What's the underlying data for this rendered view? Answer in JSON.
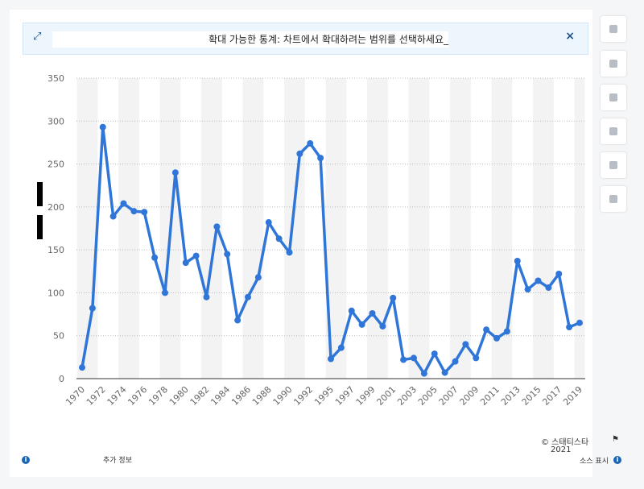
{
  "banner": {
    "text": "확대 가능한 통계: 차트에서 확대하려는 범위를 선택하세요_"
  },
  "chart_data": {
    "type": "line",
    "color": "#2f76d8",
    "categories": [
      "1970",
      "1971",
      "1972",
      "1973",
      "1974",
      "1975",
      "1976",
      "1977",
      "1978",
      "1979",
      "1980",
      "1981",
      "1982",
      "1983",
      "1984",
      "1985",
      "1986",
      "1987",
      "1988",
      "1989",
      "1990",
      "1991",
      "1992",
      "1993",
      "1995",
      "1996",
      "1997",
      "1998",
      "1999",
      "2000",
      "2001",
      "2002",
      "2003",
      "2004",
      "2005",
      "2006",
      "2007",
      "2008",
      "2009",
      "2010",
      "2011",
      "2012",
      "2013",
      "2014",
      "2015",
      "2016",
      "2017",
      "2018",
      "2019"
    ],
    "values": [
      13,
      82,
      293,
      189,
      204,
      195,
      194,
      141,
      100,
      240,
      135,
      143,
      95,
      177,
      145,
      68,
      95,
      118,
      182,
      163,
      147,
      262,
      274,
      257,
      23,
      36,
      79,
      63,
      76,
      61,
      94,
      22,
      24,
      6,
      29,
      7,
      20,
      40,
      24,
      57,
      47,
      55,
      137,
      104,
      114,
      106,
      122,
      60,
      65
    ],
    "ylim": [
      0,
      350
    ],
    "yticks": [
      0,
      50,
      100,
      150,
      200,
      250,
      300,
      350
    ],
    "grid": true
  },
  "footer": {
    "copyright": "© 스태티스타",
    "year": "2021",
    "more_info": "추가 정보",
    "show_source": "소스 표시"
  }
}
